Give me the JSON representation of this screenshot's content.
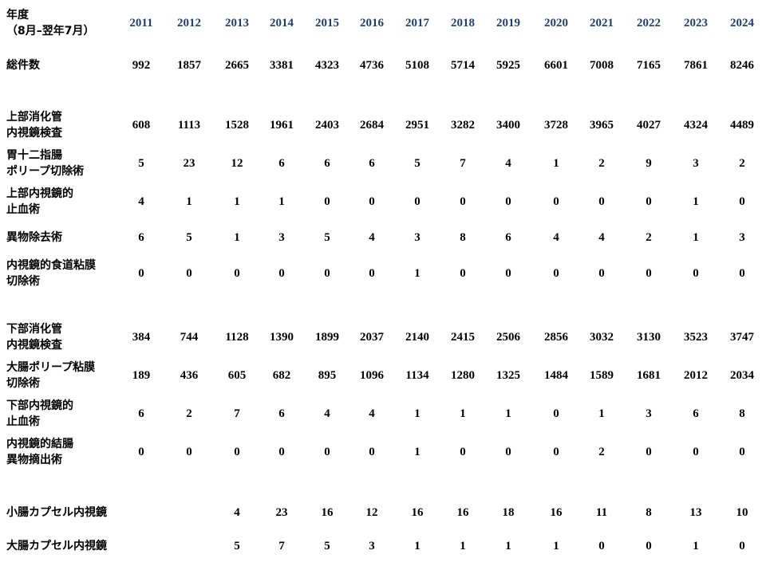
{
  "header_label": "年度\n（8月–翌年7月）",
  "years": [
    "2011",
    "2012",
    "2013",
    "2014",
    "2015",
    "2016",
    "2017",
    "2018",
    "2019",
    "2020",
    "2021",
    "2022",
    "2023",
    "2024"
  ],
  "rows": [
    {
      "label": "総件数",
      "values": [
        "992",
        "1857",
        "2665",
        "3381",
        "4323",
        "4736",
        "5108",
        "5714",
        "5925",
        "6601",
        "7008",
        "7165",
        "7861",
        "8246"
      ]
    },
    {
      "label": "上部消化管\n内視鏡検査",
      "values": [
        "608",
        "1113",
        "1528",
        "1961",
        "2403",
        "2684",
        "2951",
        "3282",
        "3400",
        "3728",
        "3965",
        "4027",
        "4324",
        "4489"
      ]
    },
    {
      "label": "胃十二指腸\nポリープ切除術",
      "values": [
        "5",
        "23",
        "12",
        "6",
        "6",
        "6",
        "5",
        "7",
        "4",
        "1",
        "2",
        "9",
        "3",
        "2"
      ]
    },
    {
      "label": "上部内視鏡的\n止血術",
      "values": [
        "4",
        "1",
        "1",
        "1",
        "0",
        "0",
        "0",
        "0",
        "0",
        "0",
        "0",
        "0",
        "1",
        "0"
      ]
    },
    {
      "label": "異物除去術",
      "values": [
        "6",
        "5",
        "1",
        "3",
        "5",
        "4",
        "3",
        "8",
        "6",
        "4",
        "4",
        "2",
        "1",
        "3"
      ]
    },
    {
      "label": "内視鏡的食道粘膜\n切除術",
      "values": [
        "0",
        "0",
        "0",
        "0",
        "0",
        "0",
        "1",
        "0",
        "0",
        "0",
        "0",
        "0",
        "0",
        "0"
      ]
    },
    {
      "label": "下部消化管\n内視鏡検査",
      "values": [
        "384",
        "744",
        "1128",
        "1390",
        "1899",
        "2037",
        "2140",
        "2415",
        "2506",
        "2856",
        "3032",
        "3130",
        "3523",
        "3747"
      ]
    },
    {
      "label": "大腸ポリープ粘膜\n切除術",
      "values": [
        "189",
        "436",
        "605",
        "682",
        "895",
        "1096",
        "1134",
        "1280",
        "1325",
        "1484",
        "1589",
        "1681",
        "2012",
        "2034"
      ]
    },
    {
      "label": "下部内視鏡的\n止血術",
      "values": [
        "6",
        "2",
        "7",
        "6",
        "4",
        "4",
        "1",
        "1",
        "1",
        "0",
        "1",
        "3",
        "6",
        "8"
      ]
    },
    {
      "label": "内視鏡的結腸\n異物摘出術",
      "values": [
        "0",
        "0",
        "0",
        "0",
        "0",
        "0",
        "1",
        "0",
        "0",
        "0",
        "2",
        "0",
        "0",
        "0"
      ]
    },
    {
      "label": "小腸カプセル内視鏡",
      "values": [
        "",
        "",
        "4",
        "23",
        "16",
        "12",
        "16",
        "16",
        "18",
        "16",
        "11",
        "8",
        "13",
        "10"
      ]
    },
    {
      "label": "大腸カプセル内視鏡",
      "values": [
        "",
        "",
        "5",
        "7",
        "5",
        "3",
        "1",
        "1",
        "1",
        "1",
        "0",
        "0",
        "1",
        "0"
      ]
    }
  ]
}
